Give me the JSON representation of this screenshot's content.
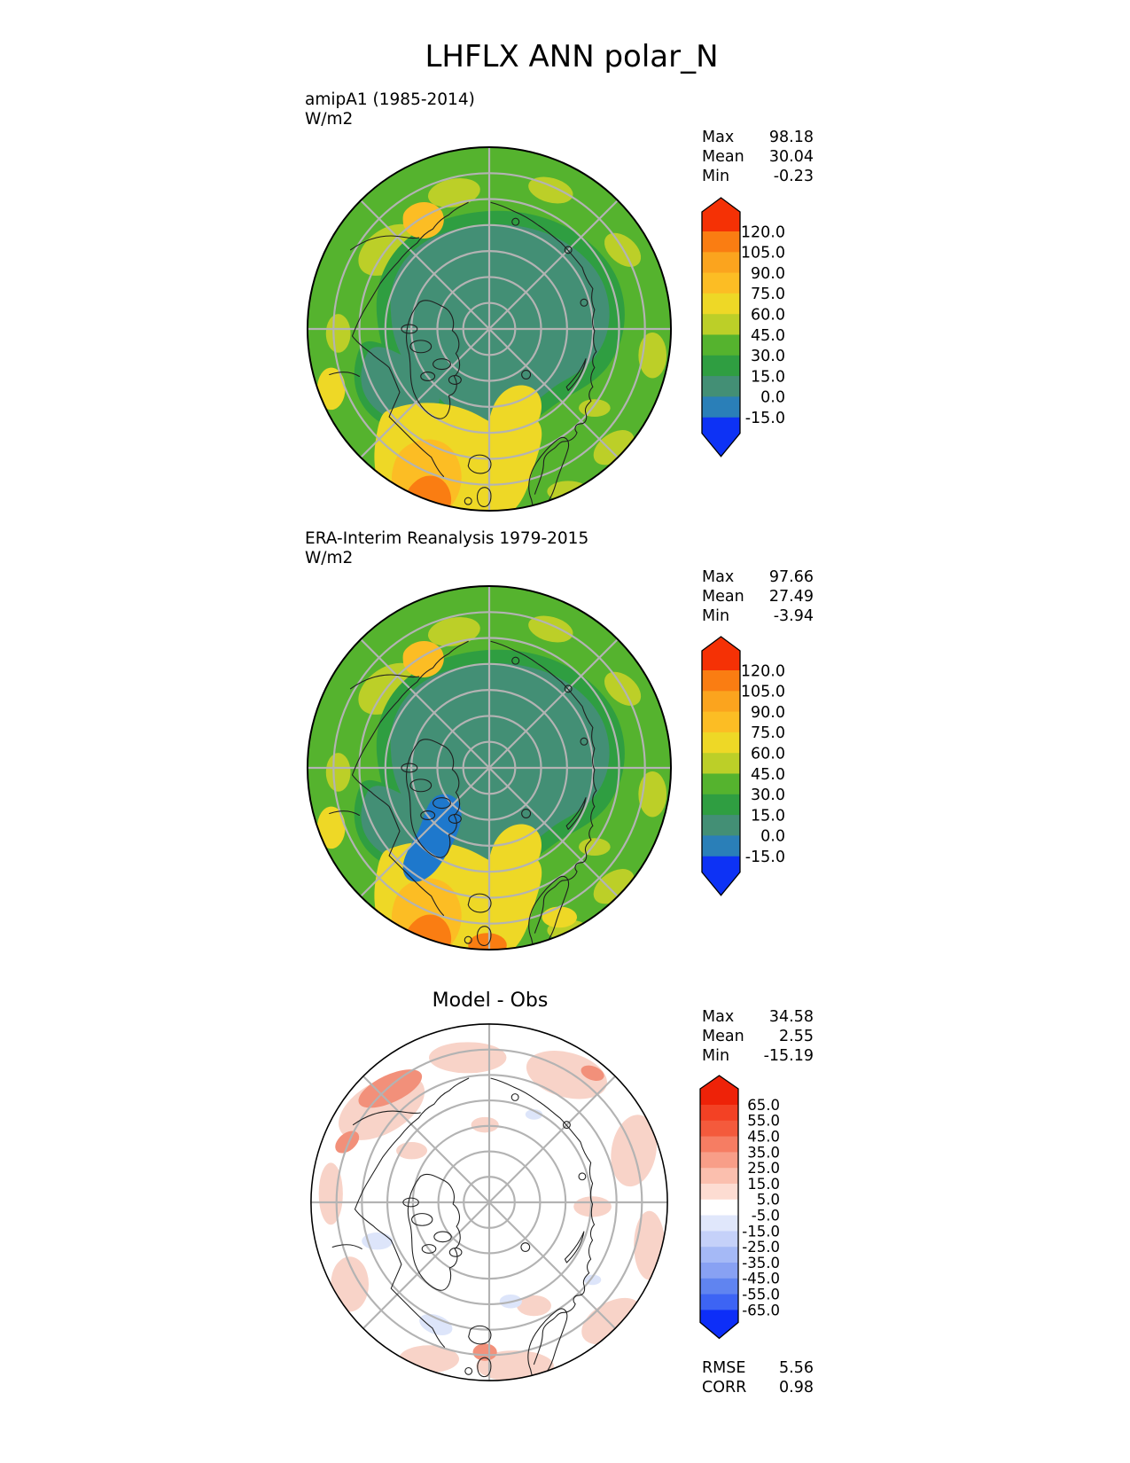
{
  "page": {
    "title": "LHFLX ANN polar_N"
  },
  "palette": {
    "text": "#000000",
    "coastline": "#1f1f1f",
    "graticule": "#b3b3b3",
    "map_border": "#000000",
    "background": "#ffffff"
  },
  "map_colors": {
    "base_green": "#55b32e",
    "green_dark": "#2f9e41",
    "teal": "#438f75",
    "yellow_green": "#bccf28",
    "yellow": "#eed826",
    "amber": "#fcbd24",
    "orange": "#fa7d12",
    "ice_blue": "#1e78cc",
    "diff_white": "#ffffff",
    "diff_pink": "#f8d3c8",
    "diff_salmon": "#f2907a",
    "diff_blue": "#dde5fa"
  },
  "chart_data": [
    {
      "type": "heatmap",
      "panel": "model",
      "title": "amipA1 (1985-2014)",
      "units": "W/m2",
      "projection": "north-polar-stereographic",
      "graticule": {
        "latitude_circles": 6,
        "meridian_interval_deg": 45
      },
      "stats": [
        {
          "label": "Max",
          "value": "98.18"
        },
        {
          "label": "Mean",
          "value": "30.04"
        },
        {
          "label": "Min",
          "value": "-0.23"
        }
      ],
      "colorbar": {
        "tick_labels": [
          "120.0",
          "105.0",
          "90.0",
          "75.0",
          "60.0",
          "45.0",
          "30.0",
          "15.0",
          "0.0",
          "-15.0"
        ],
        "band_colors_top_to_bottom": [
          "#f53105",
          "#fa7d12",
          "#fba41e",
          "#fcbd24",
          "#eed826",
          "#bccf28",
          "#55b32e",
          "#2f9e41",
          "#438f75",
          "#2a7fb8",
          "#0d32f5"
        ]
      }
    },
    {
      "type": "heatmap",
      "panel": "observation",
      "title": "ERA-Interim Reanalysis 1979-2015",
      "units": "W/m2",
      "projection": "north-polar-stereographic",
      "graticule": {
        "latitude_circles": 6,
        "meridian_interval_deg": 45
      },
      "stats": [
        {
          "label": "Max",
          "value": "97.66"
        },
        {
          "label": "Mean",
          "value": "27.49"
        },
        {
          "label": "Min",
          "value": "-3.94"
        }
      ],
      "colorbar": {
        "tick_labels": [
          "120.0",
          "105.0",
          "90.0",
          "75.0",
          "60.0",
          "45.0",
          "30.0",
          "15.0",
          "0.0",
          "-15.0"
        ],
        "band_colors_top_to_bottom": [
          "#f53105",
          "#fa7d12",
          "#fba41e",
          "#fcbd24",
          "#eed826",
          "#bccf28",
          "#55b32e",
          "#2f9e41",
          "#438f75",
          "#2a7fb8",
          "#0d32f5"
        ]
      }
    },
    {
      "type": "heatmap",
      "panel": "difference",
      "title": "Model - Obs",
      "projection": "north-polar-stereographic",
      "graticule": {
        "latitude_circles": 6,
        "meridian_interval_deg": 45
      },
      "stats": [
        {
          "label": "Max",
          "value": "34.58"
        },
        {
          "label": "Mean",
          "value": "2.55"
        },
        {
          "label": "Min",
          "value": "-15.19"
        }
      ],
      "colorbar": {
        "tick_labels": [
          "65.0",
          "55.0",
          "45.0",
          "35.0",
          "25.0",
          "15.0",
          "5.0",
          "-5.0",
          "-15.0",
          "-25.0",
          "-35.0",
          "-45.0",
          "-55.0",
          "-65.0"
        ],
        "band_colors_top_to_bottom": [
          "#ee2208",
          "#f34124",
          "#f45a3c",
          "#f67d63",
          "#f89e88",
          "#fbbfae",
          "#fddcd2",
          "#ffffff",
          "#e0e7fb",
          "#c5d1f9",
          "#a5b9f6",
          "#88a1f3",
          "#6084f0",
          "#3d64f4",
          "#0d2ef8"
        ]
      },
      "metrics": [
        {
          "label": "RMSE",
          "value": "5.56"
        },
        {
          "label": "CORR",
          "value": "0.98"
        }
      ]
    }
  ]
}
